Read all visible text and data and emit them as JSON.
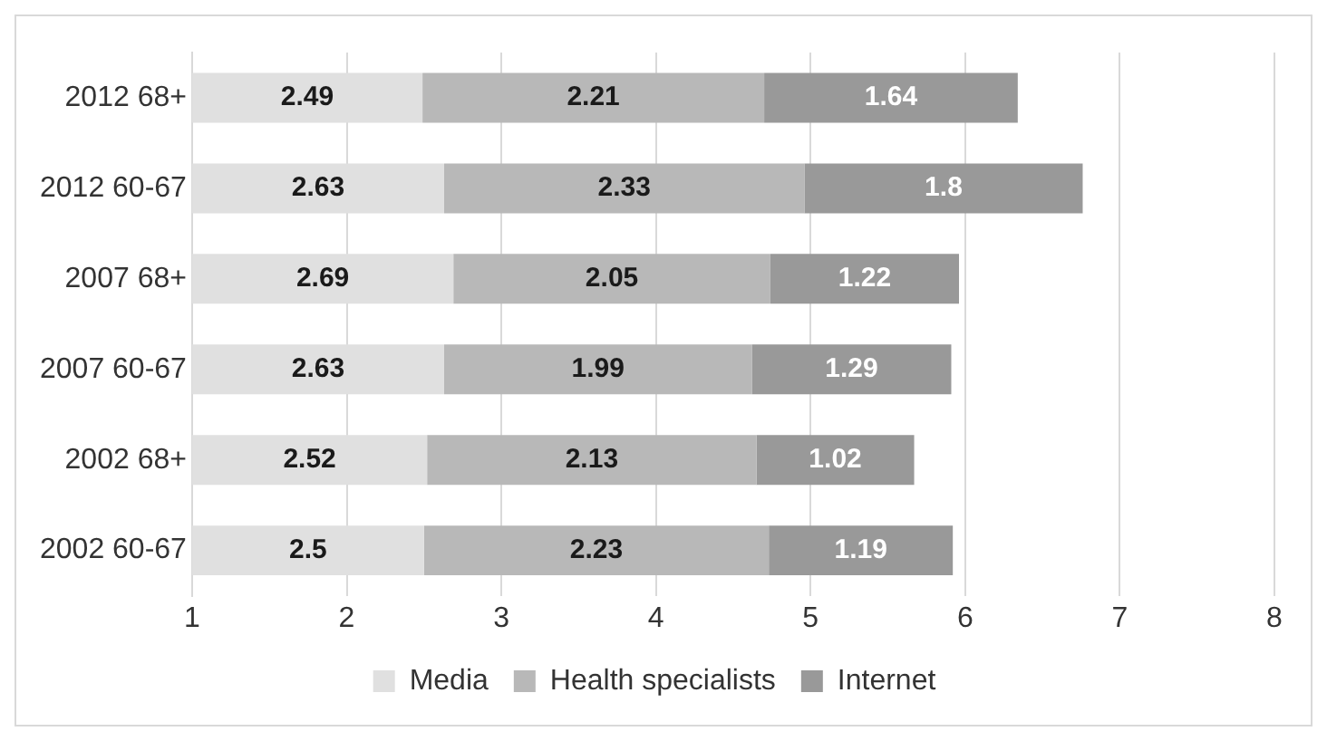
{
  "chart_data": {
    "type": "bar",
    "orientation": "horizontal",
    "stacked": true,
    "categories": [
      "2012 68+",
      "2012 60-67",
      "2007 68+",
      "2007 60-67",
      "2002 68+",
      "2002 60-67"
    ],
    "series": [
      {
        "name": "Media",
        "color": "#e0e0e0",
        "values": [
          2.49,
          2.63,
          2.69,
          2.63,
          2.52,
          2.5
        ]
      },
      {
        "name": "Health specialists",
        "color": "#b8b8b8",
        "values": [
          2.21,
          2.33,
          2.05,
          1.99,
          2.13,
          2.23
        ]
      },
      {
        "name": "Internet",
        "color": "#999999",
        "values": [
          1.64,
          1.8,
          1.22,
          1.29,
          1.02,
          1.19
        ]
      }
    ],
    "xlim": [
      1,
      8
    ],
    "xticks": [
      1,
      2,
      3,
      4,
      5,
      6,
      7,
      8
    ],
    "grid": "x",
    "legend": "bottom",
    "data_labels": true
  }
}
